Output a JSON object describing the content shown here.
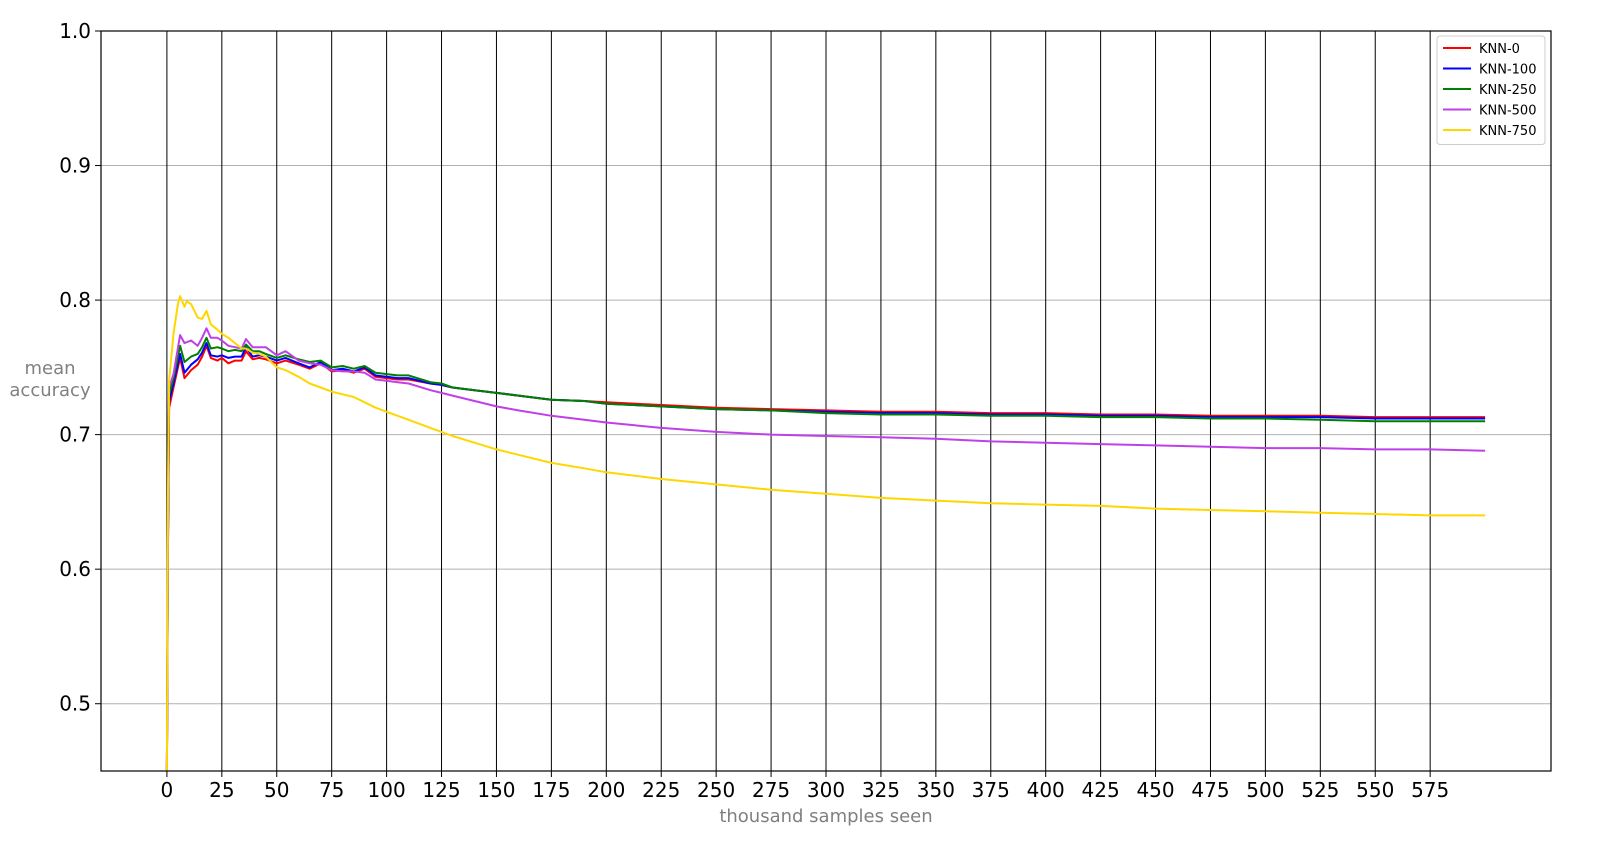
{
  "chart_data": {
    "type": "line",
    "title": "",
    "xlabel": "thousand samples seen",
    "ylabel": [
      "mean",
      "accuracy"
    ],
    "xlim": [
      -30,
      630
    ],
    "ylim": [
      0.45,
      1.0
    ],
    "x_ticks": [
      0,
      25,
      50,
      75,
      100,
      125,
      150,
      175,
      200,
      225,
      250,
      275,
      300,
      325,
      350,
      375,
      400,
      425,
      450,
      475,
      500,
      525,
      550,
      575
    ],
    "x_tick_labels": [
      "0",
      "25",
      "50",
      "75",
      "100",
      "125",
      "150",
      "175",
      "200",
      "225",
      "250",
      "275",
      "300",
      "325",
      "350",
      "375",
      "400",
      "425",
      "450",
      "475",
      "500",
      "525",
      "550",
      "575"
    ],
    "y_ticks": [
      0.5,
      0.6,
      0.7,
      0.8,
      0.9,
      1.0
    ],
    "y_tick_labels": [
      "0.5",
      "0.6",
      "0.7",
      "0.8",
      "0.9",
      "1.0"
    ],
    "vertical_grid": "black",
    "horizontal_grid": "gray",
    "legend_position": "top-right",
    "series": [
      {
        "name": "KNN-0",
        "color": "#ff0000",
        "points": [
          [
            0,
            0.45
          ],
          [
            0.5,
            0.62
          ],
          [
            1,
            0.72
          ],
          [
            3,
            0.735
          ],
          [
            6,
            0.757
          ],
          [
            8,
            0.742
          ],
          [
            11,
            0.748
          ],
          [
            14,
            0.752
          ],
          [
            16,
            0.758
          ],
          [
            18,
            0.766
          ],
          [
            20,
            0.757
          ],
          [
            23,
            0.755
          ],
          [
            25,
            0.757
          ],
          [
            28,
            0.753
          ],
          [
            31,
            0.755
          ],
          [
            34,
            0.755
          ],
          [
            36,
            0.762
          ],
          [
            39,
            0.756
          ],
          [
            42,
            0.757
          ],
          [
            45,
            0.756
          ],
          [
            50,
            0.753
          ],
          [
            54,
            0.755
          ],
          [
            60,
            0.752
          ],
          [
            65,
            0.749
          ],
          [
            70,
            0.753
          ],
          [
            75,
            0.747
          ],
          [
            80,
            0.748
          ],
          [
            85,
            0.746
          ],
          [
            90,
            0.749
          ],
          [
            95,
            0.743
          ],
          [
            100,
            0.742
          ],
          [
            105,
            0.741
          ],
          [
            110,
            0.741
          ],
          [
            120,
            0.738
          ],
          [
            125,
            0.737
          ],
          [
            130,
            0.735
          ],
          [
            140,
            0.733
          ],
          [
            150,
            0.731
          ],
          [
            160,
            0.729
          ],
          [
            175,
            0.726
          ],
          [
            190,
            0.725
          ],
          [
            200,
            0.724
          ],
          [
            225,
            0.722
          ],
          [
            250,
            0.72
          ],
          [
            275,
            0.719
          ],
          [
            300,
            0.718
          ],
          [
            325,
            0.717
          ],
          [
            350,
            0.717
          ],
          [
            375,
            0.716
          ],
          [
            400,
            0.716
          ],
          [
            425,
            0.715
          ],
          [
            450,
            0.715
          ],
          [
            475,
            0.714
          ],
          [
            500,
            0.714
          ],
          [
            525,
            0.714
          ],
          [
            550,
            0.713
          ],
          [
            575,
            0.713
          ],
          [
            600,
            0.713
          ]
        ]
      },
      {
        "name": "KNN-100",
        "color": "#0000ff",
        "points": [
          [
            0,
            0.45
          ],
          [
            0.5,
            0.62
          ],
          [
            1,
            0.725
          ],
          [
            3,
            0.738
          ],
          [
            6,
            0.76
          ],
          [
            8,
            0.746
          ],
          [
            11,
            0.752
          ],
          [
            14,
            0.756
          ],
          [
            16,
            0.761
          ],
          [
            18,
            0.768
          ],
          [
            20,
            0.759
          ],
          [
            23,
            0.758
          ],
          [
            25,
            0.759
          ],
          [
            28,
            0.757
          ],
          [
            31,
            0.758
          ],
          [
            34,
            0.758
          ],
          [
            36,
            0.765
          ],
          [
            39,
            0.758
          ],
          [
            42,
            0.759
          ],
          [
            45,
            0.758
          ],
          [
            50,
            0.755
          ],
          [
            54,
            0.757
          ],
          [
            60,
            0.753
          ],
          [
            65,
            0.75
          ],
          [
            70,
            0.754
          ],
          [
            75,
            0.748
          ],
          [
            80,
            0.749
          ],
          [
            85,
            0.747
          ],
          [
            90,
            0.75
          ],
          [
            95,
            0.744
          ],
          [
            100,
            0.743
          ],
          [
            105,
            0.742
          ],
          [
            110,
            0.742
          ],
          [
            120,
            0.738
          ],
          [
            125,
            0.737
          ],
          [
            130,
            0.735
          ],
          [
            140,
            0.733
          ],
          [
            150,
            0.731
          ],
          [
            160,
            0.729
          ],
          [
            175,
            0.726
          ],
          [
            190,
            0.725
          ],
          [
            200,
            0.723
          ],
          [
            225,
            0.721
          ],
          [
            250,
            0.719
          ],
          [
            275,
            0.718
          ],
          [
            300,
            0.717
          ],
          [
            325,
            0.716
          ],
          [
            350,
            0.716
          ],
          [
            375,
            0.715
          ],
          [
            400,
            0.715
          ],
          [
            425,
            0.714
          ],
          [
            450,
            0.714
          ],
          [
            475,
            0.713
          ],
          [
            500,
            0.713
          ],
          [
            525,
            0.713
          ],
          [
            550,
            0.712
          ],
          [
            575,
            0.712
          ],
          [
            600,
            0.712
          ]
        ]
      },
      {
        "name": "KNN-250",
        "color": "#008000",
        "points": [
          [
            0,
            0.45
          ],
          [
            0.5,
            0.63
          ],
          [
            1,
            0.73
          ],
          [
            3,
            0.742
          ],
          [
            6,
            0.766
          ],
          [
            8,
            0.754
          ],
          [
            11,
            0.758
          ],
          [
            14,
            0.76
          ],
          [
            16,
            0.765
          ],
          [
            18,
            0.772
          ],
          [
            20,
            0.764
          ],
          [
            23,
            0.765
          ],
          [
            25,
            0.764
          ],
          [
            28,
            0.762
          ],
          [
            31,
            0.763
          ],
          [
            34,
            0.762
          ],
          [
            36,
            0.767
          ],
          [
            39,
            0.762
          ],
          [
            42,
            0.762
          ],
          [
            45,
            0.76
          ],
          [
            50,
            0.757
          ],
          [
            54,
            0.759
          ],
          [
            60,
            0.756
          ],
          [
            65,
            0.754
          ],
          [
            70,
            0.755
          ],
          [
            75,
            0.75
          ],
          [
            80,
            0.751
          ],
          [
            85,
            0.749
          ],
          [
            90,
            0.751
          ],
          [
            95,
            0.746
          ],
          [
            100,
            0.745
          ],
          [
            105,
            0.744
          ],
          [
            110,
            0.744
          ],
          [
            120,
            0.739
          ],
          [
            125,
            0.738
          ],
          [
            130,
            0.735
          ],
          [
            140,
            0.733
          ],
          [
            150,
            0.731
          ],
          [
            160,
            0.729
          ],
          [
            175,
            0.726
          ],
          [
            190,
            0.725
          ],
          [
            200,
            0.723
          ],
          [
            225,
            0.721
          ],
          [
            250,
            0.719
          ],
          [
            275,
            0.718
          ],
          [
            300,
            0.716
          ],
          [
            325,
            0.715
          ],
          [
            350,
            0.715
          ],
          [
            375,
            0.714
          ],
          [
            400,
            0.714
          ],
          [
            425,
            0.713
          ],
          [
            450,
            0.713
          ],
          [
            475,
            0.712
          ],
          [
            500,
            0.712
          ],
          [
            525,
            0.711
          ],
          [
            550,
            0.71
          ],
          [
            575,
            0.71
          ],
          [
            600,
            0.71
          ]
        ]
      },
      {
        "name": "KNN-500",
        "color": "#bf40e8",
        "points": [
          [
            0,
            0.45
          ],
          [
            0.5,
            0.64
          ],
          [
            1,
            0.735
          ],
          [
            3,
            0.745
          ],
          [
            6,
            0.774
          ],
          [
            8,
            0.768
          ],
          [
            11,
            0.77
          ],
          [
            14,
            0.766
          ],
          [
            16,
            0.772
          ],
          [
            18,
            0.779
          ],
          [
            20,
            0.772
          ],
          [
            23,
            0.772
          ],
          [
            25,
            0.77
          ],
          [
            28,
            0.766
          ],
          [
            31,
            0.765
          ],
          [
            34,
            0.764
          ],
          [
            36,
            0.771
          ],
          [
            39,
            0.765
          ],
          [
            42,
            0.765
          ],
          [
            45,
            0.765
          ],
          [
            50,
            0.759
          ],
          [
            54,
            0.762
          ],
          [
            60,
            0.755
          ],
          [
            65,
            0.753
          ],
          [
            70,
            0.752
          ],
          [
            75,
            0.748
          ],
          [
            80,
            0.747
          ],
          [
            85,
            0.747
          ],
          [
            90,
            0.746
          ],
          [
            95,
            0.741
          ],
          [
            100,
            0.74
          ],
          [
            105,
            0.739
          ],
          [
            110,
            0.738
          ],
          [
            120,
            0.733
          ],
          [
            125,
            0.731
          ],
          [
            130,
            0.729
          ],
          [
            140,
            0.725
          ],
          [
            150,
            0.721
          ],
          [
            160,
            0.718
          ],
          [
            175,
            0.714
          ],
          [
            190,
            0.711
          ],
          [
            200,
            0.709
          ],
          [
            225,
            0.705
          ],
          [
            250,
            0.702
          ],
          [
            275,
            0.7
          ],
          [
            300,
            0.699
          ],
          [
            325,
            0.698
          ],
          [
            350,
            0.697
          ],
          [
            375,
            0.695
          ],
          [
            400,
            0.694
          ],
          [
            425,
            0.693
          ],
          [
            450,
            0.692
          ],
          [
            475,
            0.691
          ],
          [
            500,
            0.69
          ],
          [
            525,
            0.69
          ],
          [
            550,
            0.689
          ],
          [
            575,
            0.689
          ],
          [
            600,
            0.688
          ]
        ]
      },
      {
        "name": "KNN-750",
        "color": "#ffd700",
        "points": [
          [
            0,
            0.45
          ],
          [
            0.5,
            0.66
          ],
          [
            1,
            0.74
          ],
          [
            3,
            0.775
          ],
          [
            5,
            0.797
          ],
          [
            6,
            0.803
          ],
          [
            8,
            0.795
          ],
          [
            9,
            0.799
          ],
          [
            11,
            0.797
          ],
          [
            14,
            0.787
          ],
          [
            16,
            0.786
          ],
          [
            18,
            0.792
          ],
          [
            20,
            0.782
          ],
          [
            23,
            0.778
          ],
          [
            25,
            0.775
          ],
          [
            28,
            0.772
          ],
          [
            31,
            0.768
          ],
          [
            34,
            0.764
          ],
          [
            36,
            0.764
          ],
          [
            39,
            0.761
          ],
          [
            42,
            0.76
          ],
          [
            45,
            0.758
          ],
          [
            50,
            0.75
          ],
          [
            54,
            0.748
          ],
          [
            60,
            0.743
          ],
          [
            65,
            0.738
          ],
          [
            70,
            0.735
          ],
          [
            75,
            0.732
          ],
          [
            80,
            0.73
          ],
          [
            85,
            0.728
          ],
          [
            90,
            0.724
          ],
          [
            95,
            0.72
          ],
          [
            100,
            0.717
          ],
          [
            105,
            0.714
          ],
          [
            110,
            0.711
          ],
          [
            120,
            0.705
          ],
          [
            125,
            0.702
          ],
          [
            130,
            0.699
          ],
          [
            140,
            0.694
          ],
          [
            150,
            0.689
          ],
          [
            160,
            0.685
          ],
          [
            175,
            0.679
          ],
          [
            190,
            0.675
          ],
          [
            200,
            0.672
          ],
          [
            225,
            0.667
          ],
          [
            250,
            0.663
          ],
          [
            275,
            0.659
          ],
          [
            300,
            0.656
          ],
          [
            325,
            0.653
          ],
          [
            350,
            0.651
          ],
          [
            375,
            0.649
          ],
          [
            400,
            0.648
          ],
          [
            425,
            0.647
          ],
          [
            450,
            0.645
          ],
          [
            475,
            0.644
          ],
          [
            500,
            0.643
          ],
          [
            525,
            0.642
          ],
          [
            550,
            0.641
          ],
          [
            575,
            0.64
          ],
          [
            600,
            0.64
          ]
        ]
      }
    ]
  }
}
